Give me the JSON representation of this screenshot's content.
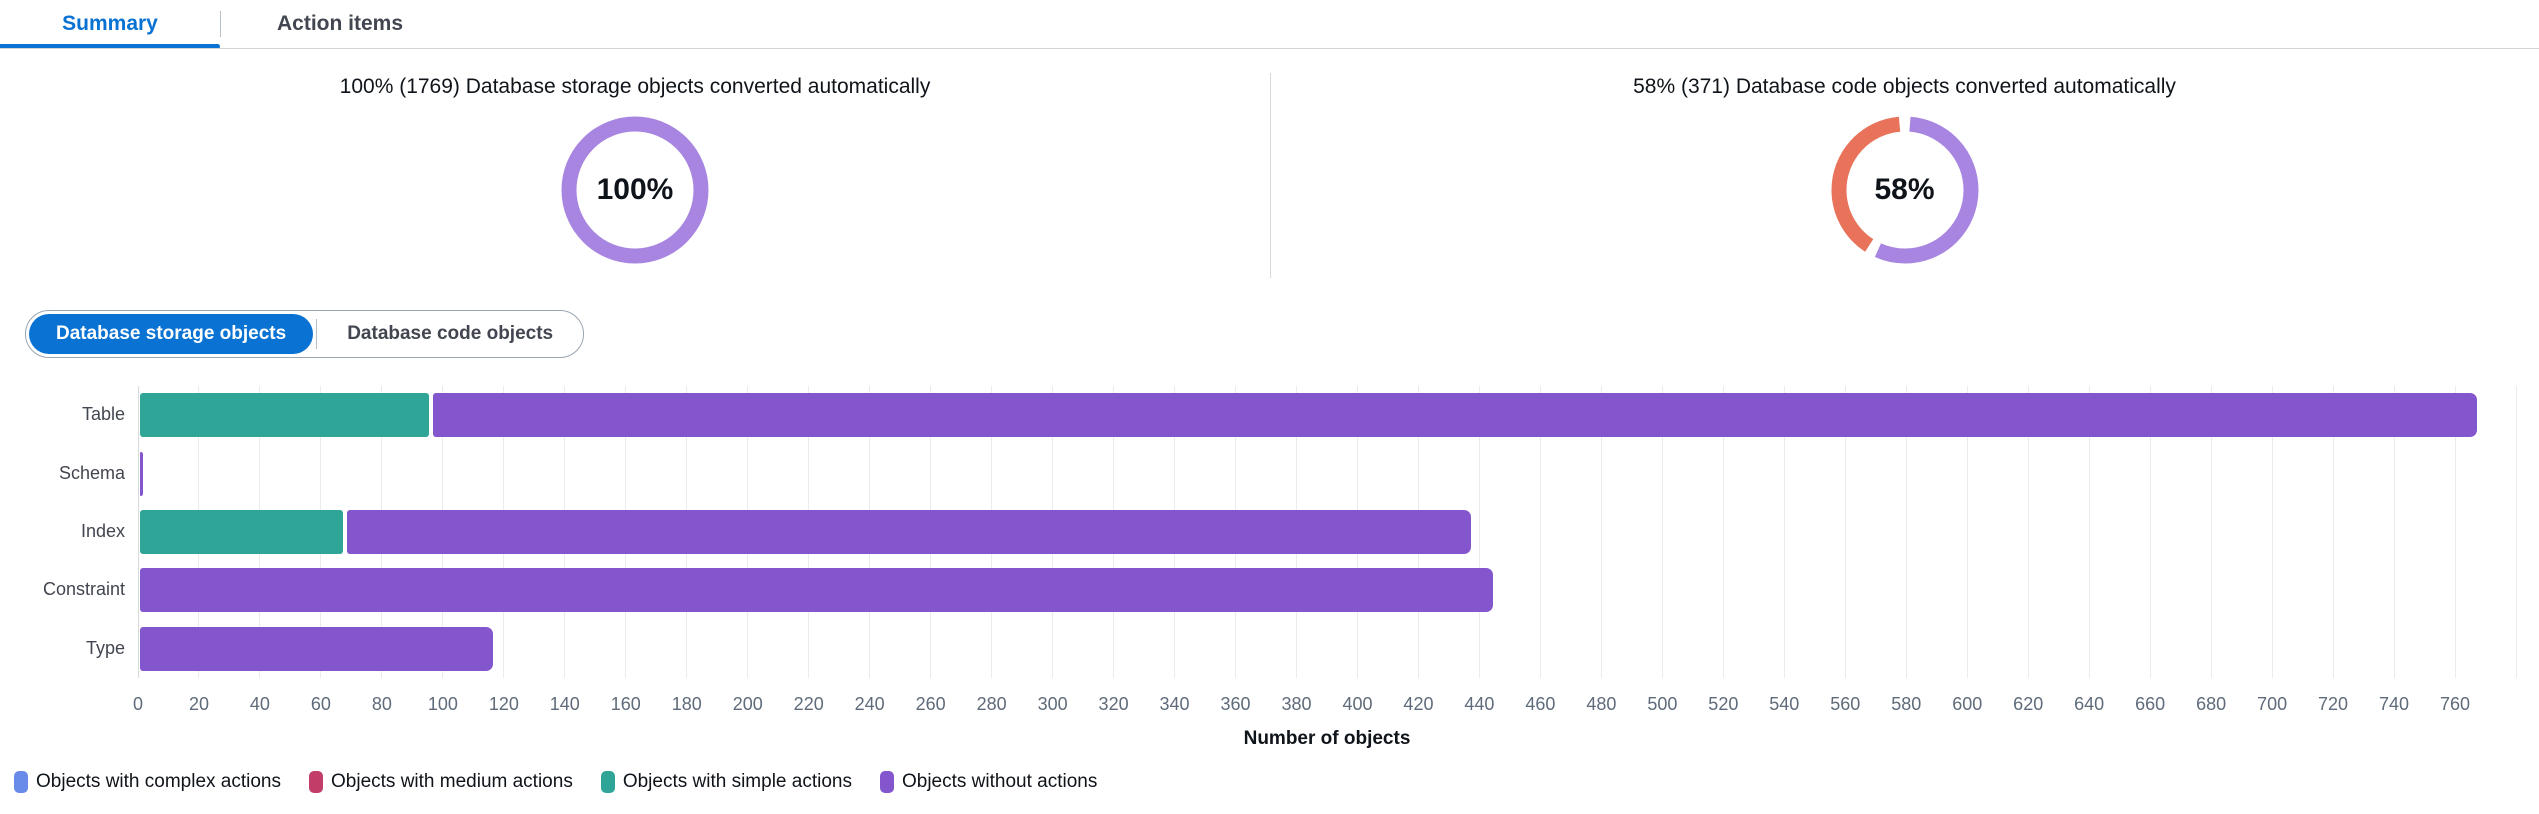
{
  "tabs": [
    {
      "label": "Summary",
      "active": true
    },
    {
      "label": "Action items",
      "active": false
    }
  ],
  "kpis": [
    {
      "title": "100% (1769) Database storage objects converted automatically",
      "center_label": "100%"
    },
    {
      "title": "58% (371) Database code objects converted automatically",
      "center_label": "58%"
    }
  ],
  "toggle": {
    "options": [
      {
        "label": "Database storage objects",
        "selected": true
      },
      {
        "label": "Database code objects",
        "selected": false
      }
    ]
  },
  "colors": {
    "accent_blue": "#0972d3",
    "donut_purple": "#a785e0",
    "donut_coral": "#e8735a",
    "bar_teal": "#2ea597",
    "bar_purple": "#8456ce",
    "legend_blue": "#688ae8",
    "legend_crimson": "#c33d69"
  },
  "chart_data": [
    {
      "type": "pie",
      "donut": true,
      "title": "100% (1769) Database storage objects converted automatically",
      "center_label": "100%",
      "slices": [
        {
          "label": "Converted automatically",
          "value": 100,
          "color": "#a785e0"
        }
      ]
    },
    {
      "type": "pie",
      "donut": true,
      "title": "58% (371) Database code objects converted automatically",
      "center_label": "58%",
      "slices": [
        {
          "label": "Converted automatically",
          "value": 58,
          "color": "#a785e0"
        },
        {
          "label": "Not converted automatically",
          "value": 42,
          "color": "#e8735a"
        }
      ]
    },
    {
      "type": "bar",
      "orientation": "horizontal",
      "title": "Database storage objects",
      "categories": [
        "Table",
        "Schema",
        "Index",
        "Constraint",
        "Type"
      ],
      "series": [
        {
          "name": "Objects with complex actions",
          "color": "#688ae8",
          "values": [
            0,
            0,
            0,
            0,
            0
          ]
        },
        {
          "name": "Objects with medium actions",
          "color": "#c33d69",
          "values": [
            0,
            0,
            0,
            0,
            0
          ]
        },
        {
          "name": "Objects with simple actions",
          "color": "#2ea597",
          "values": [
            96,
            0,
            68,
            0,
            0
          ]
        },
        {
          "name": "Objects without actions",
          "color": "#8456ce",
          "values": [
            672,
            1,
            370,
            445,
            117
          ]
        }
      ],
      "xlabel": "Number of objects",
      "xlim": [
        0,
        780
      ],
      "tick_step": 20,
      "tick_label_max": 760,
      "grid": true,
      "legend_position": "bottom"
    }
  ],
  "legend": [
    {
      "label": "Objects with complex actions",
      "color": "#688ae8"
    },
    {
      "label": "Objects with medium actions",
      "color": "#c33d69"
    },
    {
      "label": "Objects with simple actions",
      "color": "#2ea597"
    },
    {
      "label": "Objects without actions",
      "color": "#8456ce"
    }
  ]
}
